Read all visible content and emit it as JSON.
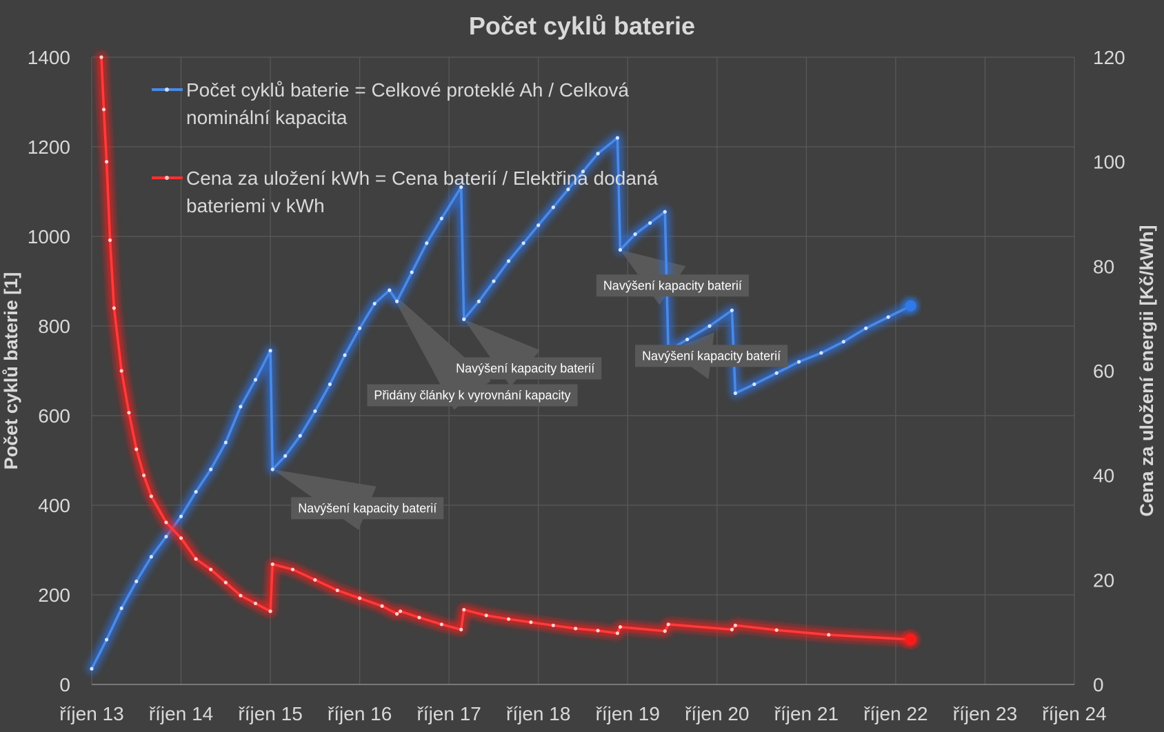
{
  "chart_data": {
    "type": "line",
    "title": "Počet cyklů baterie",
    "ylabel": "Počet cyklů baterie [1]",
    "y2label": "Cena za uložení energii [Kč/kWh]",
    "xlabel": "",
    "x_ticks": [
      "říjen 13",
      "říjen 14",
      "říjen 15",
      "říjen 16",
      "říjen 17",
      "říjen 18",
      "říjen 19",
      "říjen 20",
      "říjen 21",
      "říjen 22",
      "říjen 23",
      "říjen 24"
    ],
    "xlim": [
      "2013-10",
      "2024-10"
    ],
    "ylim": [
      0,
      1400
    ],
    "y_ticks": [
      0,
      200,
      400,
      600,
      800,
      1000,
      1200,
      1400
    ],
    "y2lim": [
      0,
      120
    ],
    "y2_ticks": [
      0,
      20,
      40,
      60,
      80,
      100,
      120
    ],
    "grid": true,
    "legend_position": "top-left",
    "series": [
      {
        "name_lines": [
          "Počet cyklů baterie = Celkové proteklé Ah / Celková",
          "nominální kapacita"
        ],
        "axis": "left",
        "color": "#3a7fe0",
        "points": [
          [
            "2013-10-01",
            35
          ],
          [
            "2013-12-01",
            100
          ],
          [
            "2014-02-01",
            170
          ],
          [
            "2014-04-01",
            230
          ],
          [
            "2014-06-01",
            285
          ],
          [
            "2014-08-01",
            330
          ],
          [
            "2014-10-01",
            375
          ],
          [
            "2014-12-01",
            430
          ],
          [
            "2015-02-01",
            480
          ],
          [
            "2015-04-01",
            540
          ],
          [
            "2015-06-01",
            620
          ],
          [
            "2015-08-01",
            680
          ],
          [
            "2015-10-01",
            745
          ],
          [
            "2015-10-10",
            480
          ],
          [
            "2015-12-01",
            510
          ],
          [
            "2016-02-01",
            555
          ],
          [
            "2016-04-01",
            610
          ],
          [
            "2016-06-01",
            670
          ],
          [
            "2016-08-01",
            735
          ],
          [
            "2016-10-01",
            795
          ],
          [
            "2016-12-01",
            850
          ],
          [
            "2017-02-01",
            880
          ],
          [
            "2017-03-01",
            855
          ],
          [
            "2017-05-01",
            920
          ],
          [
            "2017-07-01",
            985
          ],
          [
            "2017-09-01",
            1040
          ],
          [
            "2017-11-20",
            1110
          ],
          [
            "2017-12-01",
            815
          ],
          [
            "2018-02-01",
            855
          ],
          [
            "2018-04-01",
            900
          ],
          [
            "2018-06-01",
            945
          ],
          [
            "2018-08-01",
            985
          ],
          [
            "2018-10-01",
            1025
          ],
          [
            "2018-12-01",
            1065
          ],
          [
            "2019-02-01",
            1105
          ],
          [
            "2019-04-01",
            1145
          ],
          [
            "2019-06-01",
            1185
          ],
          [
            "2019-08-20",
            1220
          ],
          [
            "2019-09-01",
            970
          ],
          [
            "2019-11-01",
            1005
          ],
          [
            "2020-01-01",
            1030
          ],
          [
            "2020-03-01",
            1055
          ],
          [
            "2020-03-15",
            745
          ],
          [
            "2020-06-01",
            770
          ],
          [
            "2020-09-01",
            800
          ],
          [
            "2020-12-01",
            835
          ],
          [
            "2020-12-15",
            650
          ],
          [
            "2021-03-01",
            670
          ],
          [
            "2021-06-01",
            695
          ],
          [
            "2021-09-01",
            720
          ],
          [
            "2021-12-01",
            740
          ],
          [
            "2022-03-01",
            765
          ],
          [
            "2022-06-01",
            795
          ],
          [
            "2022-09-01",
            820
          ],
          [
            "2022-12-01",
            845
          ]
        ]
      },
      {
        "name_lines": [
          "Cena za uložení kWh = Cena baterií / Elektřina dodaná",
          "bateriemi v kWh"
        ],
        "axis": "right",
        "color": "#ff2020",
        "points": [
          [
            "2013-11-10",
            120
          ],
          [
            "2013-11-20",
            110
          ],
          [
            "2013-12-01",
            100
          ],
          [
            "2013-12-15",
            85
          ],
          [
            "2014-01-01",
            72
          ],
          [
            "2014-02-01",
            60
          ],
          [
            "2014-03-01",
            52
          ],
          [
            "2014-04-01",
            45
          ],
          [
            "2014-05-01",
            40
          ],
          [
            "2014-06-01",
            36
          ],
          [
            "2014-08-01",
            31
          ],
          [
            "2014-10-01",
            28
          ],
          [
            "2014-12-01",
            24
          ],
          [
            "2015-02-01",
            22
          ],
          [
            "2015-04-01",
            19.5
          ],
          [
            "2015-06-01",
            17
          ],
          [
            "2015-08-01",
            15.5
          ],
          [
            "2015-10-01",
            14
          ],
          [
            "2015-10-10",
            23
          ],
          [
            "2016-01-01",
            22
          ],
          [
            "2016-04-01",
            20
          ],
          [
            "2016-07-01",
            18
          ],
          [
            "2016-10-01",
            16.5
          ],
          [
            "2017-01-01",
            15
          ],
          [
            "2017-03-01",
            13.5
          ],
          [
            "2017-03-15",
            14
          ],
          [
            "2017-06-01",
            12.8
          ],
          [
            "2017-09-01",
            11.5
          ],
          [
            "2017-11-20",
            10.5
          ],
          [
            "2017-12-01",
            14.3
          ],
          [
            "2018-03-01",
            13.2
          ],
          [
            "2018-06-01",
            12.5
          ],
          [
            "2018-09-01",
            11.9
          ],
          [
            "2018-12-01",
            11.3
          ],
          [
            "2019-03-01",
            10.7
          ],
          [
            "2019-06-01",
            10.3
          ],
          [
            "2019-08-20",
            9.8
          ],
          [
            "2019-09-01",
            11
          ],
          [
            "2020-03-01",
            10.2
          ],
          [
            "2020-03-15",
            11.5
          ],
          [
            "2020-12-01",
            10.5
          ],
          [
            "2020-12-15",
            11.3
          ],
          [
            "2021-06-01",
            10.4
          ],
          [
            "2022-01-01",
            9.5
          ],
          [
            "2022-12-01",
            8.6
          ]
        ]
      }
    ],
    "annotations": [
      {
        "text": "Navýšení kapacity baterií",
        "target_series": 0,
        "target": [
          "2015-10-10",
          480
        ],
        "box": [
          "2015-12-25",
          418
        ]
      },
      {
        "text": "Přidány články k vyrovnání kapacity",
        "target_series": 0,
        "target": [
          "2017-02-01",
          880
        ],
        "box": [
          "2016-11-01",
          670
        ]
      },
      {
        "text": "Navýšení kapacity baterií",
        "target_series": 0,
        "target": [
          "2017-12-01",
          815
        ],
        "box": [
          "2017-10-01",
          730
        ]
      },
      {
        "text": "Navýšení kapacity baterií",
        "target_series": 0,
        "target": [
          "2019-09-01",
          970
        ],
        "box": [
          "2019-05-25",
          915
        ]
      },
      {
        "text": "Navýšení kapacity baterií",
        "target_series": 0,
        "target": [
          "2020-03-15",
          745
        ],
        "box": [
          "2019-11-01",
          758
        ]
      }
    ]
  }
}
